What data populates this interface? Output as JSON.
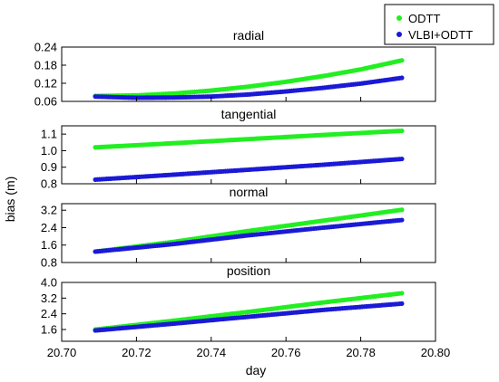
{
  "chart_data": {
    "type": "scatter",
    "ylabel": "bias (m)",
    "xlabel": "day",
    "xlim": [
      20.7,
      20.8
    ],
    "xticks": [
      20.7,
      20.72,
      20.74,
      20.76,
      20.78,
      20.8
    ],
    "xtick_labels": [
      "20.70",
      "20.72",
      "20.74",
      "20.76",
      "20.78",
      "20.80"
    ],
    "x_range_data": [
      20.709,
      20.791
    ],
    "legend": {
      "placement": "top-right",
      "entries": [
        "ODTT",
        "VLBI+ODTT"
      ]
    },
    "series_styles": [
      {
        "name": "ODTT",
        "color": "#22ee22"
      },
      {
        "name": "VLBI+ODTT",
        "color": "#1a1ad6"
      }
    ],
    "panels": [
      {
        "title": "radial",
        "ylim": [
          0.06,
          0.24
        ],
        "yticks": [
          0.06,
          0.12,
          0.18,
          0.24
        ],
        "ytick_labels": [
          "0.06",
          "0.12",
          "0.18",
          "0.24"
        ],
        "series": [
          {
            "name": "ODTT",
            "x": [
              20.709,
              20.72,
              20.73,
              20.74,
              20.75,
              20.76,
              20.77,
              20.78,
              20.791
            ],
            "values": [
              0.078,
              0.08,
              0.086,
              0.096,
              0.109,
              0.125,
              0.144,
              0.166,
              0.196
            ]
          },
          {
            "name": "VLBI+ODTT",
            "x": [
              20.709,
              20.72,
              20.73,
              20.74,
              20.75,
              20.76,
              20.77,
              20.78,
              20.791
            ],
            "values": [
              0.076,
              0.072,
              0.073,
              0.076,
              0.083,
              0.093,
              0.105,
              0.119,
              0.138
            ]
          }
        ]
      },
      {
        "title": "tangential",
        "ylim": [
          0.8,
          1.15
        ],
        "yticks": [
          0.8,
          0.9,
          1.0,
          1.1
        ],
        "ytick_labels": [
          "0.8",
          "0.9",
          "1.0",
          "1.1"
        ],
        "series": [
          {
            "name": "ODTT",
            "x": [
              20.709,
              20.73,
              20.75,
              20.77,
              20.791
            ],
            "values": [
              1.02,
              1.045,
              1.07,
              1.095,
              1.12
            ]
          },
          {
            "name": "VLBI+ODTT",
            "x": [
              20.709,
              20.73,
              20.75,
              20.77,
              20.791
            ],
            "values": [
              0.825,
              0.855,
              0.885,
              0.915,
              0.95
            ]
          }
        ]
      },
      {
        "title": "normal",
        "ylim": [
          0.8,
          3.5
        ],
        "yticks": [
          0.8,
          1.6,
          2.4,
          3.2
        ],
        "ytick_labels": [
          "0.8",
          "1.6",
          "2.4",
          "3.2"
        ],
        "series": [
          {
            "name": "ODTT",
            "x": [
              20.709,
              20.73,
              20.75,
              20.77,
              20.791
            ],
            "values": [
              1.3,
              1.75,
              2.25,
              2.72,
              3.22
            ]
          },
          {
            "name": "VLBI+ODTT",
            "x": [
              20.709,
              20.73,
              20.75,
              20.77,
              20.791
            ],
            "values": [
              1.3,
              1.65,
              2.05,
              2.4,
              2.75
            ]
          }
        ]
      },
      {
        "title": "position",
        "ylim": [
          1.0,
          4.0
        ],
        "yticks": [
          1.6,
          2.4,
          3.2,
          4.0
        ],
        "ytick_labels": [
          "1.6",
          "2.4",
          "3.2",
          "4.0"
        ],
        "series": [
          {
            "name": "ODTT",
            "x": [
              20.709,
              20.73,
              20.75,
              20.77,
              20.791
            ],
            "values": [
              1.6,
              2.05,
              2.5,
              2.98,
              3.45
            ]
          },
          {
            "name": "VLBI+ODTT",
            "x": [
              20.709,
              20.73,
              20.75,
              20.77,
              20.791
            ],
            "values": [
              1.55,
              1.9,
              2.25,
              2.6,
              2.92
            ]
          }
        ]
      }
    ]
  }
}
